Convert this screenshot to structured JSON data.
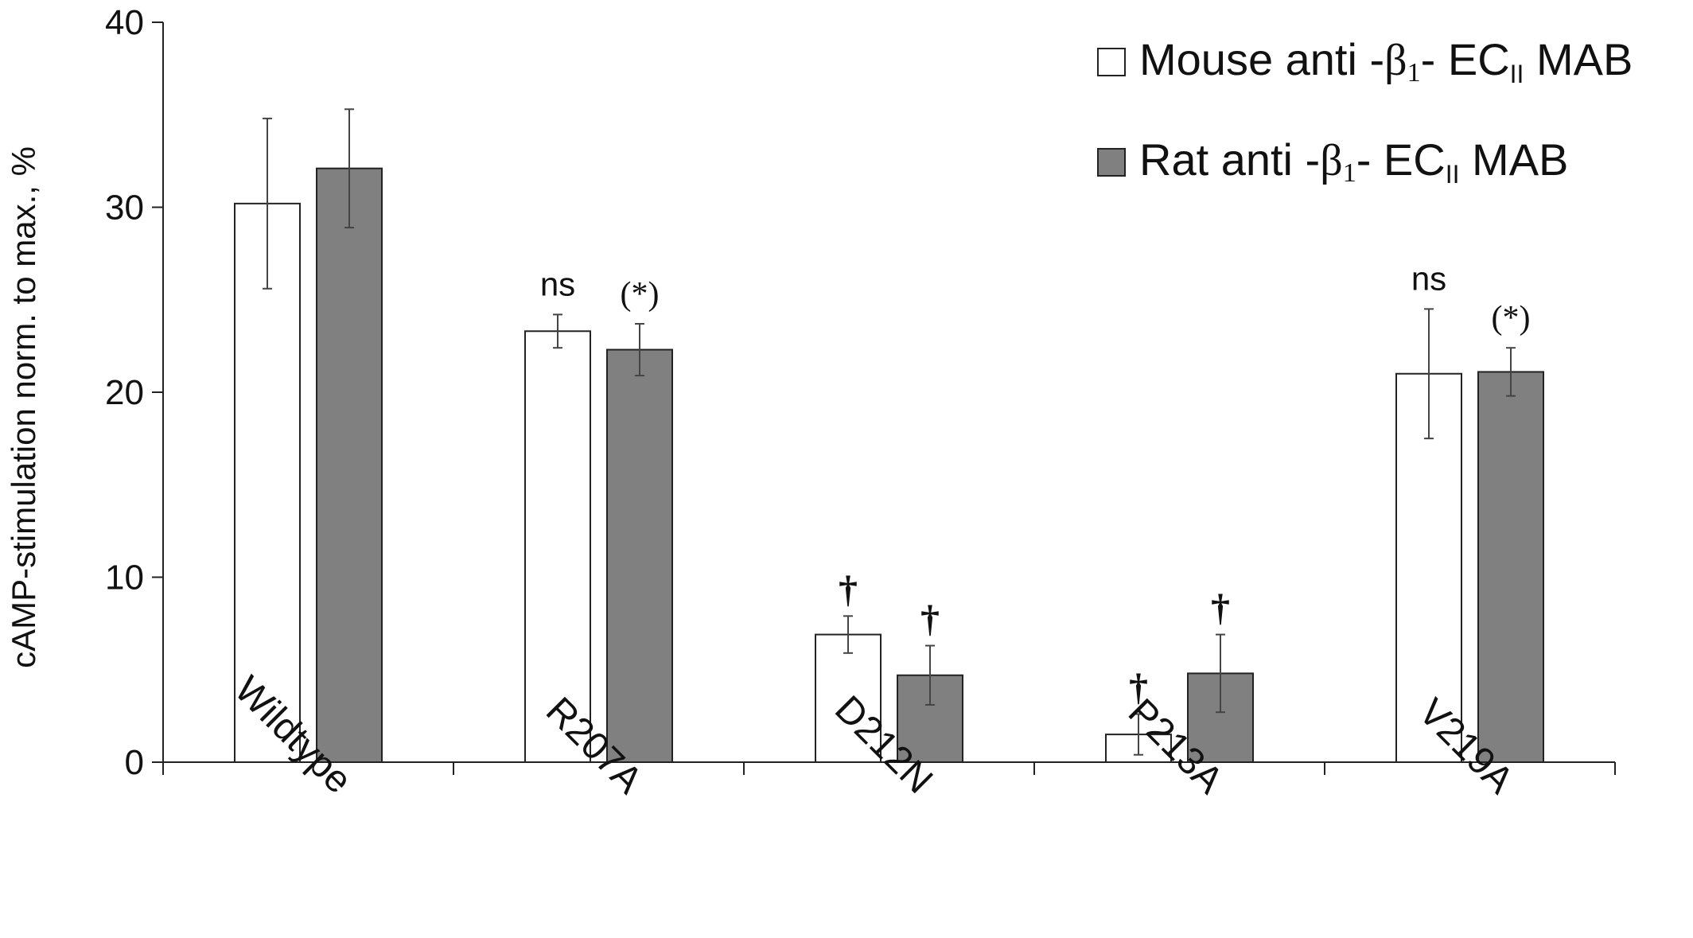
{
  "chart_data": {
    "type": "bar",
    "ylabel": "cAMP-stimulation norm. to max., %",
    "xlabel": "",
    "ylim": [
      0,
      40
    ],
    "yticks": [
      0,
      10,
      20,
      30,
      40
    ],
    "grid": false,
    "legend_position": "top-right",
    "categories": [
      "Wildtype",
      "R207A",
      "D212N",
      "P213A",
      "V219A"
    ],
    "series": [
      {
        "name_parts": [
          "Mouse anti -",
          "β",
          "1",
          "- EC",
          "II",
          " MAB"
        ],
        "fill": "#ffffff",
        "values": [
          30.2,
          23.3,
          6.9,
          1.5,
          21.0
        ],
        "errors": [
          4.6,
          0.9,
          1.0,
          1.1,
          3.5
        ],
        "annotations": [
          "",
          "ns",
          "†",
          "†",
          "ns"
        ]
      },
      {
        "name_parts": [
          "Rat anti -",
          "β",
          "1",
          "- EC",
          "II",
          " MAB"
        ],
        "fill": "#808080",
        "values": [
          32.1,
          22.3,
          4.7,
          4.8,
          21.1
        ],
        "errors": [
          3.2,
          1.4,
          1.6,
          2.1,
          1.3
        ],
        "annotations": [
          "",
          "(*)",
          "†",
          "†",
          "(*)"
        ]
      }
    ]
  }
}
